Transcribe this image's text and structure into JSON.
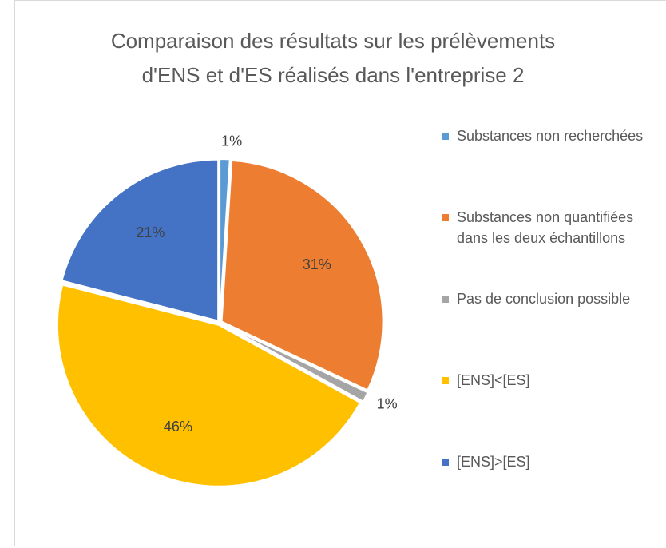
{
  "chart_data": {
    "type": "pie",
    "title": "Comparaison des résultats sur les prélèvements d'ENS et d'ES réalisés dans l'entreprise 2",
    "categories": [
      "Substances non recherchées",
      "Substances non quantifiées dans les deux échantillons",
      "Pas de conclusion possible",
      "[ENS]<[ES]",
      "[ENS]>[ES]"
    ],
    "values": [
      1,
      31,
      1,
      46,
      21
    ],
    "value_labels": [
      "1%",
      "31%",
      "1%",
      "46%",
      "21%"
    ],
    "colors": [
      "#5b9bd5",
      "#ed7d31",
      "#a5a5a5",
      "#ffc000",
      "#4472c4"
    ],
    "legend": "right"
  }
}
